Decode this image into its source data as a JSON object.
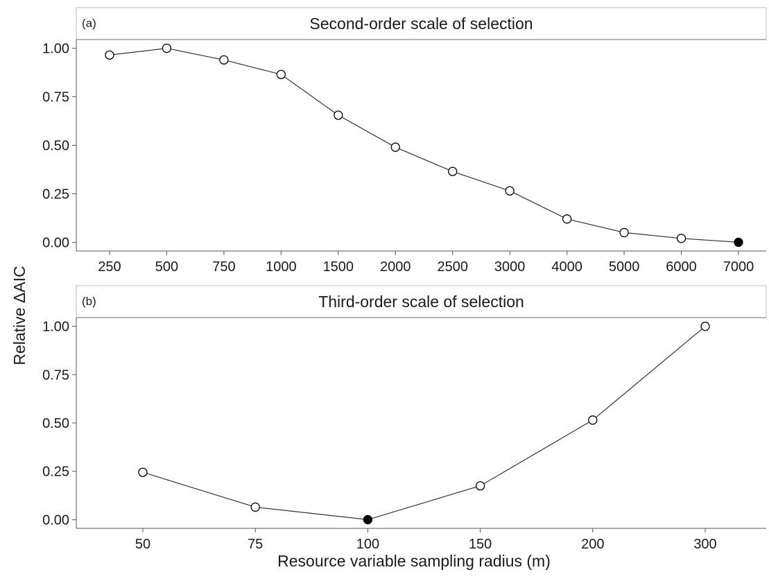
{
  "figure": {
    "ylabel": "Relative ΔAIC",
    "xlabel": "Resource variable sampling radius (m)"
  },
  "chart_data": [
    {
      "type": "line",
      "panel_tag": "(a)",
      "title": "Second-order scale of selection",
      "categories": [
        "250",
        "500",
        "750",
        "1000",
        "1500",
        "2000",
        "2500",
        "3000",
        "4000",
        "5000",
        "6000",
        "7000"
      ],
      "values": [
        0.965,
        1.0,
        0.94,
        0.865,
        0.655,
        0.49,
        0.365,
        0.265,
        0.12,
        0.05,
        0.02,
        0.0
      ],
      "highlight_index": 11,
      "yticks": [
        "0.00",
        "0.25",
        "0.50",
        "0.75",
        "1.00"
      ],
      "ylim": [
        -0.045,
        1.045
      ],
      "grid": false
    },
    {
      "type": "line",
      "panel_tag": "(b)",
      "title": "Third-order scale of selection",
      "categories": [
        "50",
        "75",
        "100",
        "150",
        "200",
        "300"
      ],
      "values": [
        0.245,
        0.065,
        0.0,
        0.175,
        0.515,
        1.0
      ],
      "highlight_index": 2,
      "yticks": [
        "0.00",
        "0.25",
        "0.50",
        "0.75",
        "1.00"
      ],
      "ylim": [
        -0.045,
        1.045
      ],
      "grid": false
    }
  ]
}
